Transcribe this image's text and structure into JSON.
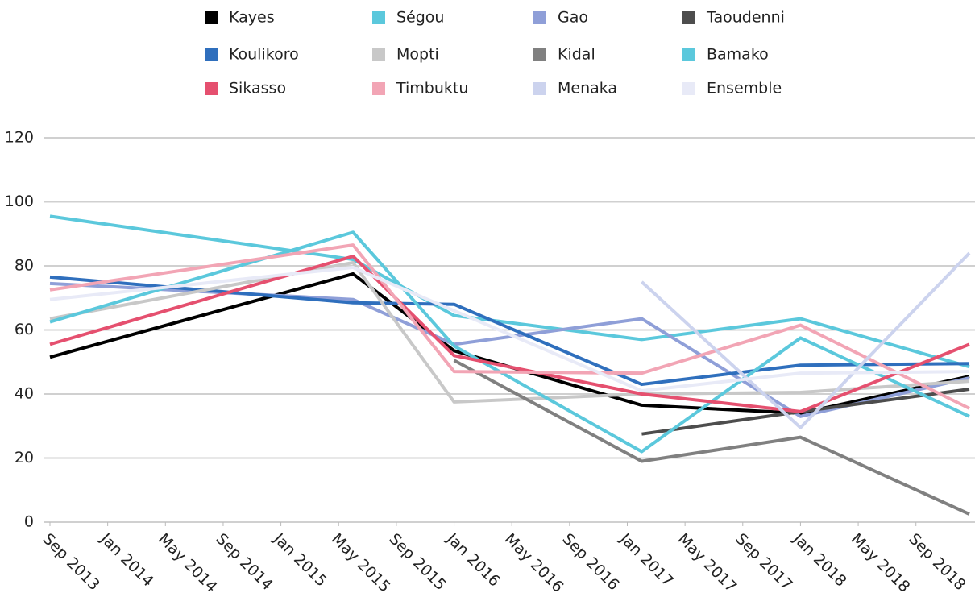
{
  "chart_data": {
    "type": "line",
    "x": [
      0,
      21,
      28,
      41,
      52,
      63.7
    ],
    "xlim": [
      0,
      63.7
    ],
    "xticks": [
      {
        "value": 0,
        "label": "Sep 2013"
      },
      {
        "value": 4,
        "label": "Jan 2014"
      },
      {
        "value": 8,
        "label": "May 2014"
      },
      {
        "value": 12,
        "label": "Sep 2014"
      },
      {
        "value": 16,
        "label": "Jan 2015"
      },
      {
        "value": 20,
        "label": "May 2015"
      },
      {
        "value": 24,
        "label": "Sep 2015"
      },
      {
        "value": 28,
        "label": "Jan 2016"
      },
      {
        "value": 32,
        "label": "May 2016"
      },
      {
        "value": 36,
        "label": "Sep 2016"
      },
      {
        "value": 40,
        "label": "Jan 2017"
      },
      {
        "value": 44,
        "label": "May 2017"
      },
      {
        "value": 48,
        "label": "Sep 2017"
      },
      {
        "value": 52,
        "label": "Jan 2018"
      },
      {
        "value": 56,
        "label": "May 2018"
      },
      {
        "value": 60,
        "label": "Sep 2018"
      }
    ],
    "ylim": [
      0,
      120
    ],
    "yticks": [
      0,
      20,
      40,
      60,
      80,
      100,
      120
    ],
    "grid": true,
    "legend": "top",
    "series": [
      {
        "name": "Kayes",
        "color": "#000000",
        "values": [
          51.5,
          77.5,
          53.5,
          36.5,
          34,
          45.5
        ]
      },
      {
        "name": "Ségou",
        "color": "#5bc8dc",
        "values": [
          95.5,
          82,
          64.5,
          57,
          63.5,
          48.5
        ]
      },
      {
        "name": "Gao",
        "color": "#8f9fd8",
        "values": [
          74.5,
          69.5,
          55.5,
          63.5,
          33,
          45
        ]
      },
      {
        "name": "Taoudenni",
        "color": "#4d4d4d",
        "values": [
          null,
          null,
          null,
          27.5,
          34.5,
          41.5
        ]
      },
      {
        "name": "Koulikoro",
        "color": "#2f6fbd",
        "values": [
          76.5,
          68.5,
          68,
          43,
          49,
          49.5
        ]
      },
      {
        "name": "Mopti",
        "color": "#c8c8c8",
        "values": [
          63.5,
          81,
          37.5,
          40,
          40.5,
          44
        ]
      },
      {
        "name": "Kidal",
        "color": "#808080",
        "values": [
          null,
          null,
          50.5,
          19,
          26.5,
          2.5
        ]
      },
      {
        "name": "Bamako",
        "color": "#5bc8dc",
        "values": [
          62.5,
          90.5,
          55,
          22,
          57.5,
          33
        ]
      },
      {
        "name": "Sikasso",
        "color": "#e5506f",
        "values": [
          55.5,
          83,
          52,
          40,
          34.5,
          55.5
        ]
      },
      {
        "name": "Timbuktu",
        "color": "#f2a5b5",
        "values": [
          72.5,
          86.5,
          47,
          46.5,
          61.5,
          35.5
        ]
      },
      {
        "name": "Menaka",
        "color": "#ccd3ee",
        "values": [
          null,
          null,
          null,
          75,
          29.5,
          84
        ]
      },
      {
        "name": "Ensemble",
        "color": "#e8eaf7",
        "values": [
          69.5,
          79.5,
          66,
          41,
          46.5,
          47
        ]
      }
    ]
  }
}
